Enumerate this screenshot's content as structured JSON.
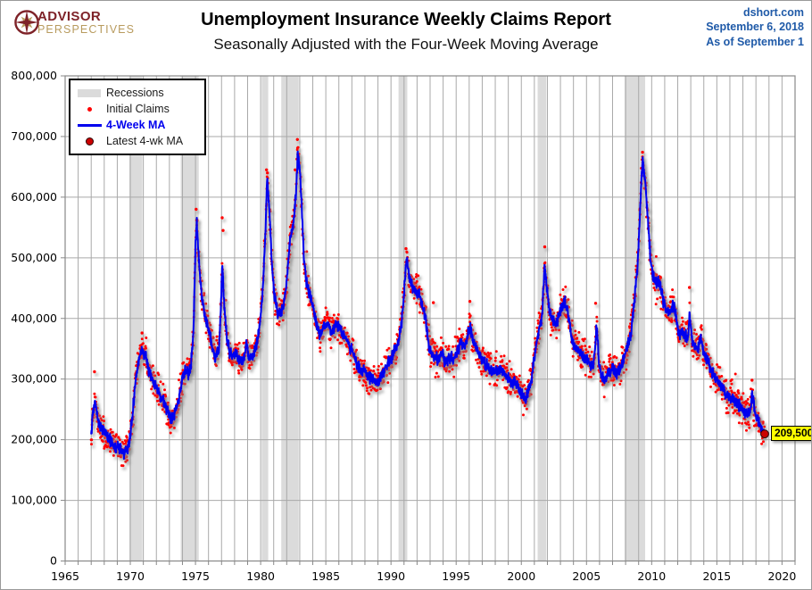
{
  "header": {
    "logo_line1": "ADVISOR",
    "logo_line2": "PERSPECTIVES",
    "title": "Unemployment Insurance Weekly Claims Report",
    "subtitle": "Seasonally Adjusted with the Four-Week Moving Average",
    "source_site": "dshort.com",
    "source_date": "September 6, 2018",
    "source_asof": "As of September 1"
  },
  "chart_data": {
    "type": "line",
    "title": "Unemployment Insurance Weekly Claims Report",
    "subtitle": "Seasonally Adjusted with the Four-Week Moving Average",
    "x_axis": {
      "min": 1965,
      "max": 2021,
      "major_tick": 5,
      "minor_tick": 1,
      "labels": [
        "1965",
        "1970",
        "1975",
        "1980",
        "1985",
        "1990",
        "1995",
        "2000",
        "2005",
        "2010",
        "2015",
        "2020"
      ]
    },
    "y_axis": {
      "min": 0,
      "max": 800000,
      "tick": 100000,
      "labels": [
        "800,000",
        "700,000",
        "600,000",
        "500,000",
        "400,000",
        "300,000",
        "200,000",
        "100,000",
        "0"
      ]
    },
    "legend": [
      {
        "label": "Recessions",
        "swatch": "band",
        "color": "#dbdbdb"
      },
      {
        "label": "Initial Claims",
        "swatch": "dot",
        "color": "#ff0000"
      },
      {
        "label": "4-Week MA",
        "swatch": "line",
        "color": "#0000ee",
        "label_color": "#0000ee"
      },
      {
        "label": "Latest 4-wk MA",
        "swatch": "bigdot",
        "color": "#cc0000"
      }
    ],
    "recessions": [
      [
        1969.92,
        1970.92
      ],
      [
        1973.87,
        1975.25
      ],
      [
        1980.08,
        1980.58
      ],
      [
        1981.58,
        1982.92
      ],
      [
        1990.58,
        1991.25
      ],
      [
        2001.25,
        2001.92
      ],
      [
        2007.92,
        2009.5
      ]
    ],
    "series": [
      {
        "name": "4-Week MA",
        "color": "#0000ee",
        "points": [
          [
            1967.0,
            210000
          ],
          [
            1967.15,
            248000
          ],
          [
            1967.3,
            262000
          ],
          [
            1967.5,
            232000
          ],
          [
            1967.75,
            218000
          ],
          [
            1968.0,
            212000
          ],
          [
            1968.3,
            202000
          ],
          [
            1968.6,
            196000
          ],
          [
            1968.9,
            188000
          ],
          [
            1969.2,
            183000
          ],
          [
            1969.5,
            179000
          ],
          [
            1969.75,
            184000
          ],
          [
            1969.95,
            200000
          ],
          [
            1970.15,
            235000
          ],
          [
            1970.4,
            298000
          ],
          [
            1970.65,
            330000
          ],
          [
            1970.9,
            351000
          ],
          [
            1971.05,
            334000
          ],
          [
            1971.2,
            341000
          ],
          [
            1971.4,
            315000
          ],
          [
            1971.65,
            300000
          ],
          [
            1971.9,
            292000
          ],
          [
            1972.2,
            278000
          ],
          [
            1972.5,
            265000
          ],
          [
            1972.8,
            252000
          ],
          [
            1973.1,
            231000
          ],
          [
            1973.4,
            243000
          ],
          [
            1973.7,
            264000
          ],
          [
            1973.95,
            295000
          ],
          [
            1974.2,
            316000
          ],
          [
            1974.45,
            310000
          ],
          [
            1974.65,
            322000
          ],
          [
            1974.85,
            375000
          ],
          [
            1975.0,
            520000
          ],
          [
            1975.1,
            558000
          ],
          [
            1975.25,
            500000
          ],
          [
            1975.4,
            452000
          ],
          [
            1975.6,
            420000
          ],
          [
            1975.9,
            392000
          ],
          [
            1976.2,
            362000
          ],
          [
            1976.5,
            332000
          ],
          [
            1976.8,
            352000
          ],
          [
            1976.95,
            415000
          ],
          [
            1977.05,
            495000
          ],
          [
            1977.2,
            420000
          ],
          [
            1977.4,
            368000
          ],
          [
            1977.6,
            345000
          ],
          [
            1977.85,
            338000
          ],
          [
            1978.1,
            345000
          ],
          [
            1978.4,
            328000
          ],
          [
            1978.7,
            332000
          ],
          [
            1978.9,
            360000
          ],
          [
            1979.1,
            332000
          ],
          [
            1979.4,
            338000
          ],
          [
            1979.7,
            355000
          ],
          [
            1979.95,
            392000
          ],
          [
            1980.15,
            442000
          ],
          [
            1980.35,
            535000
          ],
          [
            1980.5,
            628000
          ],
          [
            1980.65,
            585000
          ],
          [
            1980.85,
            495000
          ],
          [
            1981.05,
            440000
          ],
          [
            1981.3,
            408000
          ],
          [
            1981.55,
            410000
          ],
          [
            1981.8,
            425000
          ],
          [
            1982.0,
            462000
          ],
          [
            1982.25,
            530000
          ],
          [
            1982.5,
            555000
          ],
          [
            1982.7,
            600000
          ],
          [
            1982.85,
            672000
          ],
          [
            1983.0,
            645000
          ],
          [
            1983.15,
            585000
          ],
          [
            1983.3,
            505000
          ],
          [
            1983.5,
            462000
          ],
          [
            1983.75,
            440000
          ],
          [
            1984.0,
            420000
          ],
          [
            1984.25,
            392000
          ],
          [
            1984.55,
            372000
          ],
          [
            1984.85,
            388000
          ],
          [
            1985.15,
            392000
          ],
          [
            1985.45,
            376000
          ],
          [
            1985.75,
            390000
          ],
          [
            1986.05,
            386000
          ],
          [
            1986.35,
            372000
          ],
          [
            1986.65,
            362000
          ],
          [
            1986.95,
            350000
          ],
          [
            1987.25,
            332000
          ],
          [
            1987.55,
            320000
          ],
          [
            1987.85,
            313000
          ],
          [
            1988.15,
            306000
          ],
          [
            1988.5,
            300000
          ],
          [
            1988.85,
            294000
          ],
          [
            1989.1,
            296000
          ],
          [
            1989.4,
            312000
          ],
          [
            1989.7,
            322000
          ],
          [
            1990.0,
            334000
          ],
          [
            1990.3,
            345000
          ],
          [
            1990.6,
            362000
          ],
          [
            1990.85,
            400000
          ],
          [
            1991.05,
            458000
          ],
          [
            1991.2,
            500000
          ],
          [
            1991.4,
            466000
          ],
          [
            1991.65,
            453000
          ],
          [
            1991.9,
            447000
          ],
          [
            1992.15,
            438000
          ],
          [
            1992.4,
            422000
          ],
          [
            1992.65,
            400000
          ],
          [
            1992.9,
            352000
          ],
          [
            1993.1,
            344000
          ],
          [
            1993.35,
            338000
          ],
          [
            1993.65,
            332000
          ],
          [
            1993.9,
            342000
          ],
          [
            1994.15,
            326000
          ],
          [
            1994.45,
            337000
          ],
          [
            1994.75,
            331000
          ],
          [
            1995.05,
            344000
          ],
          [
            1995.35,
            357000
          ],
          [
            1995.65,
            352000
          ],
          [
            1995.9,
            374000
          ],
          [
            1996.05,
            387000
          ],
          [
            1996.3,
            361000
          ],
          [
            1996.6,
            349000
          ],
          [
            1996.9,
            336000
          ],
          [
            1997.2,
            327000
          ],
          [
            1997.5,
            319000
          ],
          [
            1997.8,
            314000
          ],
          [
            1998.1,
            309000
          ],
          [
            1998.45,
            319000
          ],
          [
            1998.75,
            307000
          ],
          [
            1999.05,
            301000
          ],
          [
            1999.35,
            296000
          ],
          [
            1999.65,
            291000
          ],
          [
            1999.9,
            283000
          ],
          [
            2000.1,
            271000
          ],
          [
            2000.3,
            266000
          ],
          [
            2000.55,
            281000
          ],
          [
            2000.8,
            302000
          ],
          [
            2001.0,
            336000
          ],
          [
            2001.2,
            362000
          ],
          [
            2001.4,
            391000
          ],
          [
            2001.6,
            406000
          ],
          [
            2001.78,
            489000
          ],
          [
            2001.95,
            452000
          ],
          [
            2002.15,
            414000
          ],
          [
            2002.4,
            397000
          ],
          [
            2002.65,
            391000
          ],
          [
            2002.9,
            406000
          ],
          [
            2003.1,
            417000
          ],
          [
            2003.3,
            431000
          ],
          [
            2003.55,
            414000
          ],
          [
            2003.8,
            374000
          ],
          [
            2004.05,
            353000
          ],
          [
            2004.35,
            346000
          ],
          [
            2004.65,
            339000
          ],
          [
            2004.95,
            333000
          ],
          [
            2005.25,
            326000
          ],
          [
            2005.5,
            318000
          ],
          [
            2005.68,
            352000
          ],
          [
            2005.78,
            392000
          ],
          [
            2005.95,
            326000
          ],
          [
            2006.15,
            304000
          ],
          [
            2006.4,
            296000
          ],
          [
            2006.7,
            313000
          ],
          [
            2007.0,
            318000
          ],
          [
            2007.3,
            309000
          ],
          [
            2007.6,
            316000
          ],
          [
            2007.9,
            336000
          ],
          [
            2008.15,
            356000
          ],
          [
            2008.4,
            374000
          ],
          [
            2008.65,
            422000
          ],
          [
            2008.9,
            482000
          ],
          [
            2009.05,
            546000
          ],
          [
            2009.2,
            628000
          ],
          [
            2009.32,
            659000
          ],
          [
            2009.5,
            624000
          ],
          [
            2009.7,
            568000
          ],
          [
            2009.9,
            498000
          ],
          [
            2010.1,
            468000
          ],
          [
            2010.35,
            457000
          ],
          [
            2010.6,
            463000
          ],
          [
            2010.85,
            432000
          ],
          [
            2011.1,
            414000
          ],
          [
            2011.35,
            409000
          ],
          [
            2011.5,
            414000
          ],
          [
            2011.7,
            422000
          ],
          [
            2011.9,
            398000
          ],
          [
            2012.1,
            372000
          ],
          [
            2012.35,
            380000
          ],
          [
            2012.6,
            368000
          ],
          [
            2012.8,
            372000
          ],
          [
            2012.92,
            405000
          ],
          [
            2013.1,
            362000
          ],
          [
            2013.35,
            352000
          ],
          [
            2013.55,
            348000
          ],
          [
            2013.75,
            370000
          ],
          [
            2014.0,
            344000
          ],
          [
            2014.3,
            330000
          ],
          [
            2014.6,
            314000
          ],
          [
            2014.9,
            300000
          ],
          [
            2015.2,
            295000
          ],
          [
            2015.5,
            281000
          ],
          [
            2015.8,
            270000
          ],
          [
            2016.05,
            271000
          ],
          [
            2016.3,
            264000
          ],
          [
            2016.55,
            262000
          ],
          [
            2016.8,
            254000
          ],
          [
            2017.05,
            248000
          ],
          [
            2017.3,
            244000
          ],
          [
            2017.5,
            241000
          ],
          [
            2017.62,
            260000
          ],
          [
            2017.72,
            278000
          ],
          [
            2017.88,
            250000
          ],
          [
            2018.05,
            234000
          ],
          [
            2018.25,
            227000
          ],
          [
            2018.45,
            217000
          ],
          [
            2018.58,
            212000
          ],
          [
            2018.67,
            209500
          ]
        ]
      }
    ],
    "initial_claims": {
      "name": "Initial Claims",
      "color": "#ff0000",
      "noise": 24000,
      "spike_prob": 0.015,
      "spike_scale": 42000,
      "seed": 20180906,
      "outliers": [
        [
          1967.25,
          312000
        ],
        [
          1970.9,
          376000
        ],
        [
          1975.05,
          580000
        ],
        [
          1975.12,
          562000
        ],
        [
          1977.05,
          566000
        ],
        [
          1977.12,
          545000
        ],
        [
          1980.45,
          645000
        ],
        [
          1980.52,
          640000
        ],
        [
          1982.65,
          645000
        ],
        [
          1982.82,
          695000
        ],
        [
          1991.15,
          515000
        ],
        [
          1993.25,
          426000
        ],
        [
          1996.05,
          428000
        ],
        [
          2001.8,
          518000
        ],
        [
          2005.7,
          425000
        ],
        [
          2009.3,
          674000
        ],
        [
          2012.9,
          451000
        ],
        [
          2017.7,
          298000
        ]
      ]
    },
    "line_jitter": 9000,
    "latest": {
      "x": 2018.67,
      "value": 209500,
      "label": "209,500",
      "color": "#cc0000"
    },
    "colors": {
      "recession": "#dbdbdb",
      "grid": "#a9a9a9",
      "frame": "#888888",
      "callout_bg": "#ffff00",
      "shadow": "#8a8a8a"
    }
  }
}
